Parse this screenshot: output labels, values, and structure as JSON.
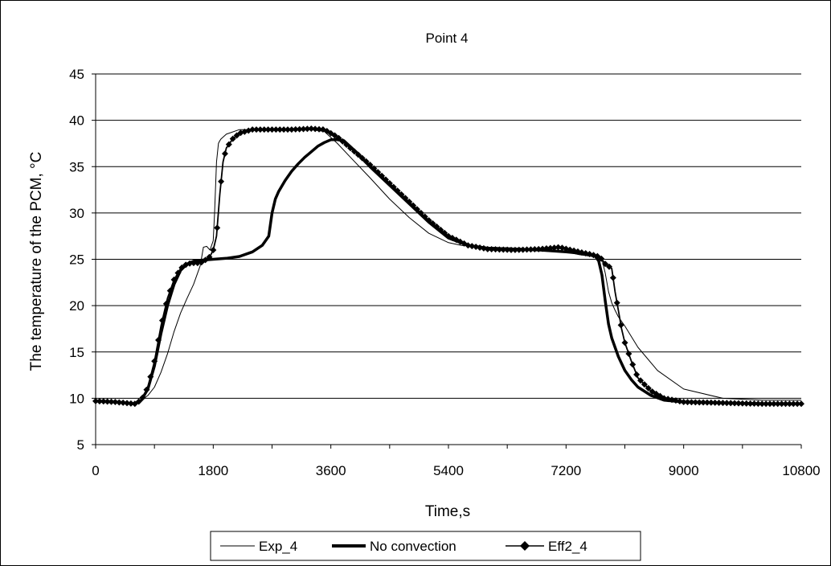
{
  "chart_data": {
    "type": "line",
    "title": "Point 4",
    "xlabel": "Time,s",
    "ylabel": "The temperature of the PCM, °C",
    "xlim": [
      0,
      10800
    ],
    "ylim": [
      5,
      45
    ],
    "xticks": [
      0,
      1800,
      3600,
      5400,
      7200,
      9000,
      10800
    ],
    "yticks": [
      5,
      10,
      15,
      20,
      25,
      30,
      35,
      40,
      45
    ],
    "grid": "horizontal",
    "legend": "bottom",
    "series": [
      {
        "name": "Exp_4",
        "style": "thin",
        "color": "#000000",
        "x": [
          0,
          300,
          600,
          700,
          800,
          900,
          1000,
          1100,
          1200,
          1300,
          1400,
          1500,
          1600,
          1650,
          1700,
          1750,
          1800,
          1820,
          1850,
          1880,
          1900,
          1920,
          2000,
          2200,
          2500,
          3000,
          3300,
          3500,
          3700,
          3900,
          4200,
          4500,
          4800,
          5100,
          5400,
          5600,
          6000,
          6500,
          7000,
          7200,
          7400,
          7600,
          7700,
          7750,
          7800,
          7850,
          7900,
          7950,
          8000,
          8100,
          8300,
          8600,
          9000,
          9600,
          10200,
          10800
        ],
        "y": [
          9.7,
          9.6,
          9.5,
          9.8,
          10.3,
          11.2,
          12.8,
          14.8,
          17.2,
          19.2,
          20.8,
          22.3,
          24.3,
          26.3,
          26.4,
          26.0,
          27.0,
          30.0,
          35.5,
          37.5,
          37.8,
          38.0,
          38.5,
          39.0,
          39.0,
          39.0,
          39.0,
          38.8,
          37.5,
          36.0,
          33.8,
          31.5,
          29.5,
          27.8,
          26.8,
          26.5,
          26.3,
          26.2,
          26.0,
          25.8,
          25.5,
          25.3,
          25.2,
          25.0,
          23.5,
          21.5,
          20.3,
          19.5,
          18.8,
          17.8,
          15.5,
          13.0,
          11.0,
          10.0,
          9.8,
          9.8
        ]
      },
      {
        "name": "No convection",
        "style": "thick",
        "color": "#000000",
        "x": [
          0,
          300,
          600,
          700,
          800,
          900,
          1000,
          1100,
          1200,
          1300,
          1400,
          1500,
          1600,
          1800,
          2000,
          2200,
          2400,
          2550,
          2650,
          2700,
          2750,
          2800,
          2900,
          3000,
          3100,
          3200,
          3300,
          3400,
          3500,
          3600,
          3700,
          3800,
          4000,
          4200,
          4500,
          4800,
          5100,
          5400,
          5700,
          6000,
          6400,
          6800,
          7200,
          7500,
          7650,
          7700,
          7750,
          7800,
          7850,
          7900,
          7950,
          8000,
          8100,
          8200,
          8300,
          8500,
          8700,
          9000,
          9600,
          10200,
          10800
        ],
        "y": [
          9.7,
          9.6,
          9.4,
          9.8,
          11.0,
          13.5,
          17.0,
          20.0,
          22.3,
          23.8,
          24.5,
          24.8,
          24.9,
          25.0,
          25.1,
          25.3,
          25.8,
          26.5,
          27.5,
          30.0,
          31.5,
          32.3,
          33.5,
          34.5,
          35.3,
          36.0,
          36.6,
          37.2,
          37.6,
          37.9,
          37.9,
          37.8,
          36.5,
          35.0,
          33.0,
          31.0,
          29.0,
          27.3,
          26.5,
          26.2,
          26.1,
          26.0,
          25.8,
          25.6,
          25.3,
          24.8,
          23.3,
          20.5,
          18.0,
          16.5,
          15.5,
          14.5,
          13.0,
          12.0,
          11.2,
          10.3,
          9.8,
          9.6,
          9.5,
          9.4,
          9.4
        ]
      },
      {
        "name": "Eff2_4",
        "style": "medium-markers",
        "color": "#000000",
        "x": [
          0,
          300,
          600,
          700,
          800,
          900,
          1000,
          1100,
          1200,
          1300,
          1400,
          1500,
          1600,
          1700,
          1750,
          1800,
          1850,
          1900,
          1950,
          2000,
          2100,
          2200,
          2400,
          2700,
          3000,
          3300,
          3500,
          3700,
          3900,
          4200,
          4500,
          4800,
          5100,
          5400,
          5700,
          6000,
          6400,
          6800,
          7100,
          7400,
          7600,
          7700,
          7750,
          7800,
          7900,
          7950,
          8000,
          8050,
          8100,
          8200,
          8300,
          8500,
          8700,
          9000,
          9600,
          10200,
          10800
        ],
        "y": [
          9.7,
          9.6,
          9.4,
          9.8,
          11.2,
          14.0,
          17.8,
          20.8,
          22.8,
          24.0,
          24.5,
          24.6,
          24.6,
          25.0,
          25.3,
          26.0,
          27.5,
          32.0,
          35.5,
          37.0,
          38.0,
          38.6,
          39.0,
          39.0,
          39.0,
          39.1,
          39.0,
          38.2,
          37.0,
          35.2,
          33.2,
          31.2,
          29.2,
          27.5,
          26.5,
          26.1,
          26.0,
          26.1,
          26.3,
          25.8,
          25.5,
          25.3,
          25.0,
          24.5,
          24.0,
          21.5,
          19.5,
          17.5,
          16.0,
          14.0,
          12.2,
          10.8,
          10.0,
          9.6,
          9.5,
          9.4,
          9.4
        ]
      }
    ]
  }
}
